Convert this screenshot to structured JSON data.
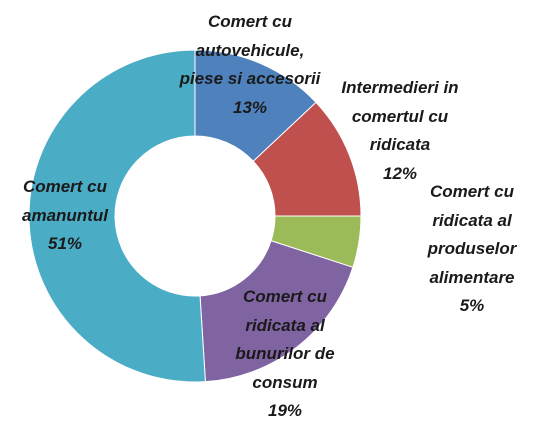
{
  "chart_data": {
    "type": "donut",
    "categories": [
      "Comert  cu\nautovehicule,\npiese si accesorii",
      "Intermedieri in\ncomertul cu\nridicata",
      "Comert cu\nridicata al\nproduselor\nalimentare",
      "Comert cu\nridicata al\nbunurilor de\nconsum",
      "Comert cu\namanuntul"
    ],
    "values": [
      13,
      12,
      5,
      19,
      51
    ],
    "value_labels": [
      "13%",
      "12%",
      "5%",
      "19%",
      "51%"
    ],
    "colors": [
      "#4f81bd",
      "#c0504d",
      "#9bbb59",
      "#8064a2",
      "#4bacc6"
    ]
  }
}
